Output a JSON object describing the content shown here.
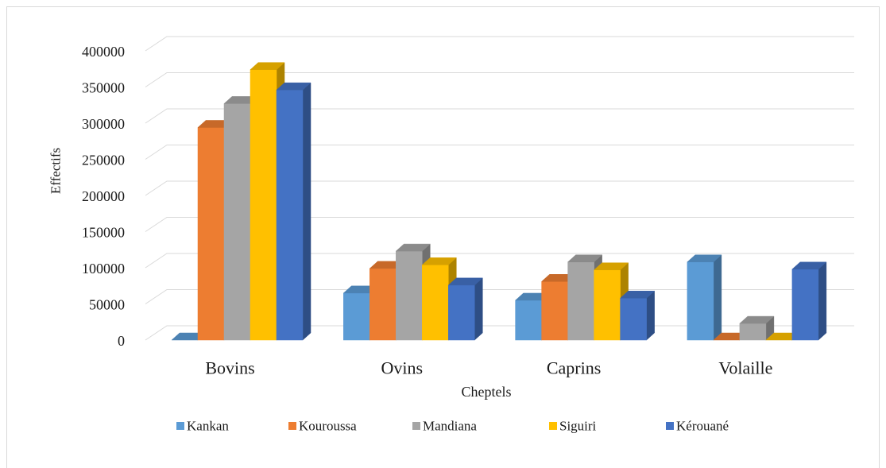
{
  "chart_data": {
    "type": "bar",
    "three_d": true,
    "xlabel": "Cheptels",
    "ylabel": "Effectifs",
    "categories": [
      "Bovins",
      "Ovins",
      "Caprins",
      "Volaille"
    ],
    "series": [
      {
        "name": "Kankan",
        "color": "#5B9BD5",
        "values": [
          0,
          65000,
          55000,
          108000
        ]
      },
      {
        "name": "Kouroussa",
        "color": "#ED7D31",
        "values": [
          294000,
          99000,
          81000,
          0
        ]
      },
      {
        "name": "Mandiana",
        "color": "#A5A5A5",
        "values": [
          327000,
          123000,
          108000,
          23000
        ]
      },
      {
        "name": "Siguiri",
        "color": "#FFC000",
        "values": [
          374000,
          104000,
          97000,
          0
        ]
      },
      {
        "name": "Kérouané",
        "color": "#4472C4",
        "values": [
          346000,
          76000,
          58000,
          98000
        ]
      }
    ],
    "ylim": [
      0,
      400000
    ],
    "yticks": [
      0,
      50000,
      100000,
      150000,
      200000,
      250000,
      300000,
      350000,
      400000
    ],
    "grid": true,
    "legend": "bottom"
  }
}
